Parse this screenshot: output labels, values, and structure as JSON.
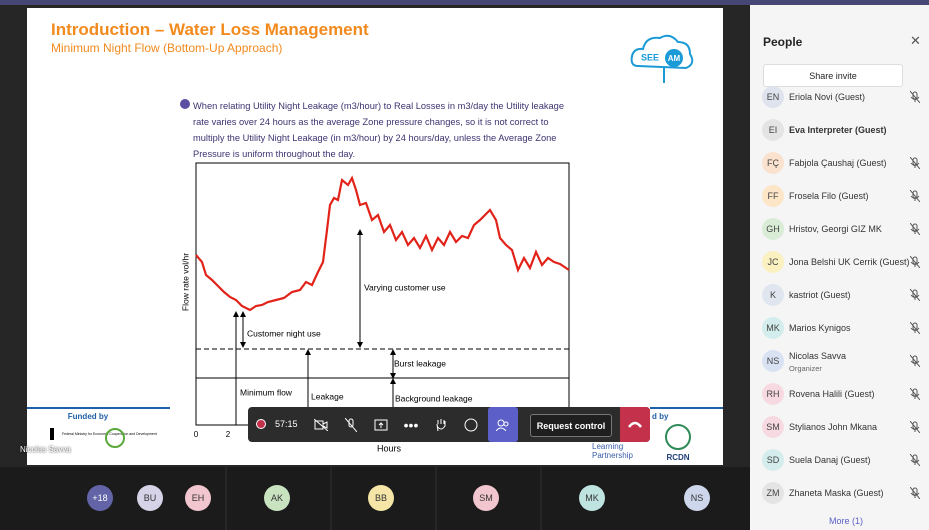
{
  "slide": {
    "title": "Introduction – Water Loss Management",
    "subtitle": "Minimum Night Flow (Bottom-Up Approach)",
    "logo": [
      "SEE",
      "AM"
    ],
    "bullet": "When relating Utility Night Leakage (m3/hour) to Real Losses in m3/day the Utility leakage rate varies over 24 hours as the average Zone pressure changes, so it is not correct to multiply the Utility Night Leakage (in m3/hour) by 24 hours/day, unless the Average Zone Pressure is uniform throughout the day.",
    "diagram": {
      "y_label": "Flow rate vol/hr",
      "varying_use": "Varying  customer use",
      "night_use": "Customer night use",
      "burst": "Burst leakage",
      "minimum_flow": "Minimum flow",
      "leakage": "Leakage",
      "background": "Background leakage",
      "x_ticks": [
        "0",
        "2"
      ],
      "x_label": "Hours"
    },
    "funded_left": "Funded by",
    "funder_text": "Federal Ministry for Economic Cooperation and Development",
    "funded_right": "d by",
    "partner": [
      "Learning",
      "Partnership"
    ],
    "rcdn": "RCDN"
  },
  "presenter_label": "Nicolas Savva",
  "toolbar": {
    "timer": "57:15",
    "request_control": "Request control"
  },
  "gallery": [
    "+18",
    "BU",
    "EH",
    "AK",
    "BB",
    "SM",
    "MK",
    "NS"
  ],
  "people_panel": {
    "title": "People",
    "share_invite": "Share invite",
    "participants": [
      {
        "initials": "EN",
        "name": "Eriola Novi (Guest)"
      },
      {
        "initials": "EI",
        "name": "Eva Interpreter (Guest)"
      },
      {
        "initials": "FÇ",
        "name": "Fabjola Çaushaj (Guest)"
      },
      {
        "initials": "FF",
        "name": "Frosela Filo (Guest)"
      },
      {
        "initials": "GH",
        "name": "Hristov, Georgi GIZ MK"
      },
      {
        "initials": "JC",
        "name": "Jona Belshi UK Cerrik (Guest)"
      },
      {
        "initials": "K",
        "name": "kastriot (Guest)"
      },
      {
        "initials": "MK",
        "name": "Marios Kynigos"
      },
      {
        "initials": "NS",
        "name": "Nicolas Savva",
        "role": "Organizer"
      },
      {
        "initials": "RH",
        "name": "Rovena Halili (Guest)"
      },
      {
        "initials": "SM",
        "name": "Stylianos John Mkana"
      },
      {
        "initials": "SD",
        "name": "Suela Danaj (Guest)"
      },
      {
        "initials": "ZM",
        "name": "Zhaneta Maska (Guest)"
      }
    ],
    "more": "More (1)"
  }
}
